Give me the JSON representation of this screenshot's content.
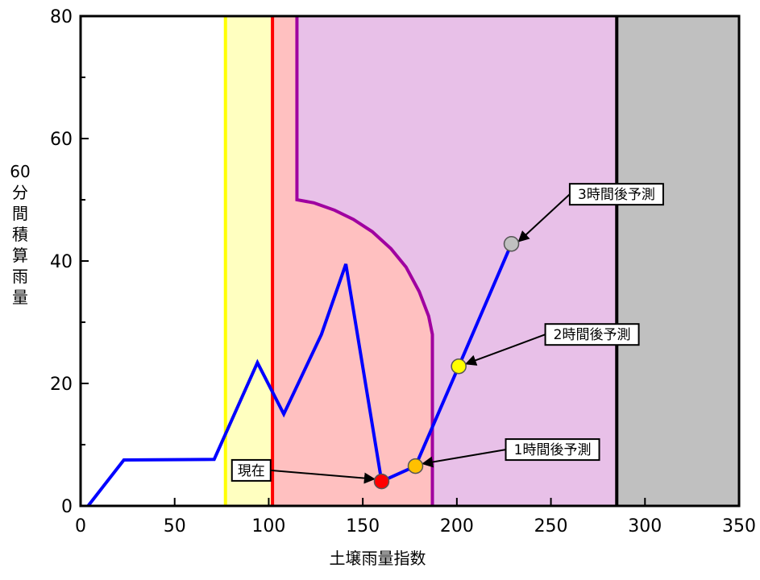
{
  "chart_data": {
    "type": "line",
    "title": "",
    "xlabel": "土壌雨量指数",
    "ylabel": "60分間積算雨量",
    "xlim": [
      0,
      350
    ],
    "ylim": [
      0,
      80
    ],
    "x_ticks": [
      0,
      50,
      100,
      150,
      200,
      250,
      300,
      350
    ],
    "y_ticks": [
      0,
      20,
      40,
      60,
      80
    ],
    "x_tick_labels": [
      "0",
      "50",
      "100",
      "150",
      "200",
      "250",
      "300",
      "350"
    ],
    "y_tick_labels": [
      "0",
      "20",
      "40",
      "60",
      "80"
    ],
    "grid": false,
    "colors": {
      "series": "#0000ff",
      "yellow_band": "#ffffc0",
      "yellow_line": "#ffff00",
      "red_band": "#ffc0c0",
      "red_line": "#ff0000",
      "purple_band": "#e8c0e8",
      "purple_line": "#a000a0",
      "gray_band": "#c0c0c0",
      "black_line": "#000000"
    },
    "bands": [
      {
        "name": "yellow",
        "x_from": 77,
        "x_to": 102
      },
      {
        "name": "red",
        "x_from": 102,
        "x_to": 187
      },
      {
        "name": "purple",
        "x_from": 115,
        "x_to": 285
      },
      {
        "name": "gray",
        "x_from": 285,
        "x_to": 350
      }
    ],
    "threshold_lines": {
      "yellow_x": 77,
      "red_x": 102,
      "black_x": 285,
      "purple_curve": [
        [
          115,
          80
        ],
        [
          115,
          50
        ],
        [
          124,
          49.5
        ],
        [
          135,
          48.3
        ],
        [
          145,
          46.8
        ],
        [
          155,
          44.8
        ],
        [
          165,
          42
        ],
        [
          173,
          39
        ],
        [
          180,
          35
        ],
        [
          185,
          31
        ],
        [
          187,
          28
        ],
        [
          187,
          0
        ]
      ]
    },
    "series": [
      {
        "values": [
          [
            4,
            0
          ],
          [
            23,
            7.5
          ],
          [
            71,
            7.6
          ],
          [
            94,
            23.4
          ],
          [
            108,
            15
          ],
          [
            128,
            28
          ],
          [
            141,
            39.5
          ],
          [
            160,
            4
          ],
          [
            178,
            6.5
          ],
          [
            201,
            22.8
          ],
          [
            229,
            42.8
          ]
        ]
      }
    ],
    "markers": [
      {
        "label": "現在",
        "x": 160,
        "y": 4,
        "color": "#ff0000",
        "label_x": 101,
        "label_y": 5.8
      },
      {
        "label": "1時間後予測",
        "x": 178,
        "y": 6.5,
        "color": "#ffc000",
        "label_x": 226,
        "label_y": 9.2
      },
      {
        "label": "2時間後予測",
        "x": 201,
        "y": 22.8,
        "color": "#ffff00",
        "label_x": 247,
        "label_y": 28
      },
      {
        "label": "3時間後予測",
        "x": 229,
        "y": 42.8,
        "color": "#c0c0c0",
        "label_x": 260,
        "label_y": 50.9
      }
    ]
  }
}
